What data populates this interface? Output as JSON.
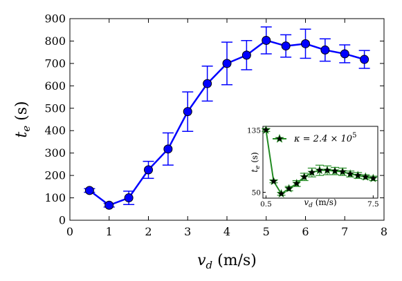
{
  "chart_data": [
    {
      "type": "line",
      "xlabel_main": "v",
      "xlabel_sub": "d",
      "xlabel_unit": " (m/s)",
      "ylabel_main": "t",
      "ylabel_sub": "e",
      "ylabel_unit": " (s)",
      "xlim": [
        0,
        8
      ],
      "ylim": [
        0,
        900
      ],
      "xticks": [
        0,
        1,
        2,
        3,
        4,
        5,
        6,
        7,
        8
      ],
      "yticks": [
        0,
        100,
        200,
        300,
        400,
        500,
        600,
        700,
        800,
        900
      ],
      "grid": false,
      "series": [
        {
          "color": "#0000ff",
          "marker": "circle",
          "x": [
            0.5,
            1.0,
            1.5,
            2.0,
            2.5,
            3.0,
            3.5,
            4.0,
            4.5,
            5.0,
            5.5,
            6.0,
            6.5,
            7.0,
            7.5
          ],
          "y": [
            133,
            67,
            100,
            225,
            318,
            485,
            610,
            700,
            737,
            803,
            778,
            788,
            760,
            743,
            718
          ],
          "err": [
            8,
            8,
            30,
            38,
            72,
            88,
            78,
            95,
            65,
            60,
            50,
            65,
            50,
            40,
            40
          ]
        }
      ]
    },
    {
      "type": "line",
      "xlabel_main": "v",
      "xlabel_sub": "d",
      "xlabel_unit": " (m/s)",
      "ylabel_main": "t",
      "ylabel_sub": "e",
      "ylabel_unit": " (s)",
      "xlim": [
        0.3,
        7.8
      ],
      "ylim": [
        42,
        140
      ],
      "xticks": [
        0.5,
        7.5
      ],
      "xtick_labels": [
        "0.5",
        "7.5"
      ],
      "yticks": [
        50,
        135
      ],
      "ytick_labels": [
        "50",
        "135"
      ],
      "legend": "top-right",
      "series": [
        {
          "name": "κ = 2.4 × 10^5",
          "legend_text": "κ = 2.4 × 10",
          "legend_exp": "5",
          "color": "#228b22",
          "marker": "star",
          "x": [
            0.5,
            1.0,
            1.5,
            2.0,
            2.5,
            3.0,
            3.5,
            4.0,
            4.5,
            5.0,
            5.5,
            6.0,
            6.5,
            7.0,
            7.5
          ],
          "y": [
            135,
            65,
            48,
            55,
            62,
            71,
            77,
            80,
            80,
            79,
            78,
            75,
            73,
            71,
            69
          ],
          "err": [
            2,
            2,
            2,
            3,
            4,
            5,
            6,
            7,
            6,
            5,
            5,
            4,
            4,
            3,
            3
          ]
        }
      ]
    }
  ]
}
